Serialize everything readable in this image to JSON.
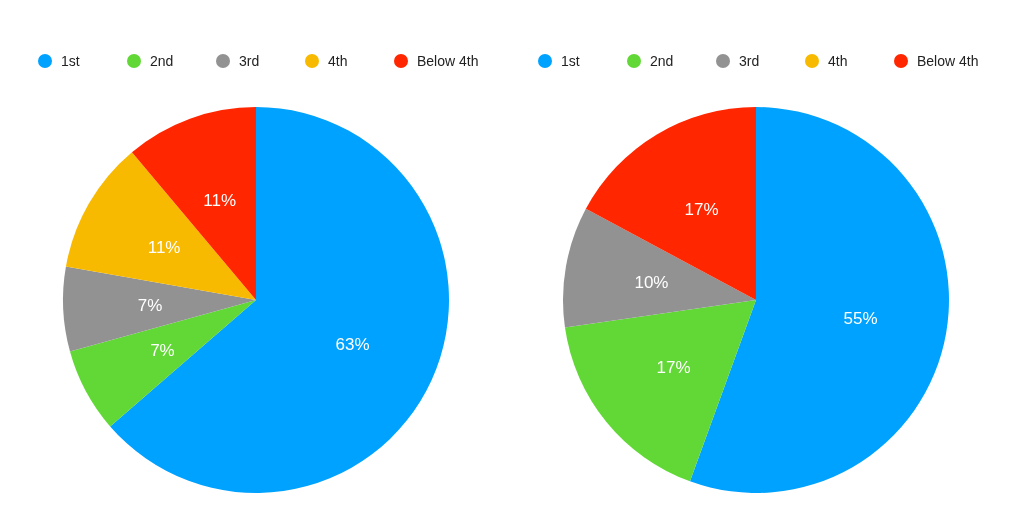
{
  "chart_data": [
    {
      "type": "pie",
      "categories": [
        "1st",
        "2nd",
        "3rd",
        "4th",
        "Below 4th"
      ],
      "values": [
        63,
        7,
        7,
        11,
        11
      ],
      "value_labels": [
        "63%",
        "7%",
        "7%",
        "11%",
        "11%"
      ],
      "colors": [
        "#00a2ff",
        "#61d836",
        "#929292",
        "#f8ba00",
        "#ff2600"
      ],
      "legend": "top"
    },
    {
      "type": "pie",
      "categories": [
        "1st",
        "2nd",
        "3rd",
        "4th",
        "Below 4th"
      ],
      "values": [
        55,
        17,
        10,
        0,
        17
      ],
      "value_labels": [
        "55%",
        "17%",
        "10%",
        null,
        "17%"
      ],
      "colors": [
        "#00a2ff",
        "#61d836",
        "#929292",
        "#f8ba00",
        "#ff2600"
      ],
      "legend": "top"
    }
  ]
}
